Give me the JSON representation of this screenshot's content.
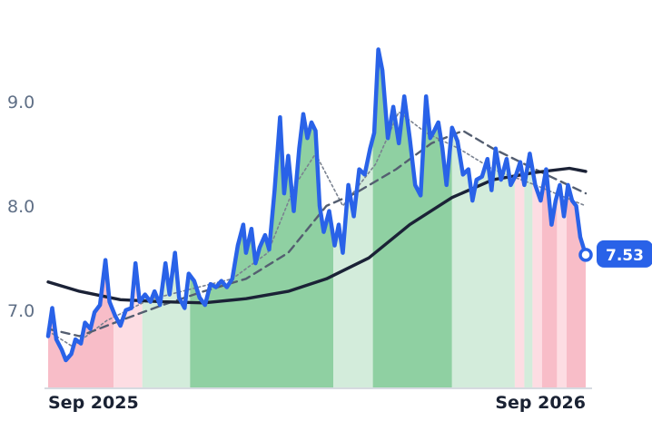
{
  "chart_data": {
    "type": "line",
    "title": "",
    "xlabel": "",
    "ylabel": "",
    "x_range": [
      "2025-08-28",
      "2026-09-26"
    ],
    "ylim": [
      6.25,
      9.8
    ],
    "y_ticks": [
      {
        "value": 7.0,
        "label": "7.0"
      },
      {
        "value": 8.0,
        "label": "8.0"
      },
      {
        "value": 9.0,
        "label": "9.0"
      }
    ],
    "x_ticks": [
      {
        "value": "2025-09-01",
        "label": "Sep 2025"
      },
      {
        "value": "2026-09-01",
        "label": "Sep 2026"
      }
    ],
    "grid": false,
    "legend": "none",
    "last_value_label": "7.53",
    "colors": {
      "price": "#2962e8",
      "long_ma": "#1b2236",
      "mid_ma": "#545e70",
      "short_ma": "#7a8290",
      "up_strong": "#8fd0a2",
      "up_light": "#d3ecdb",
      "down_strong": "#f8bdc8",
      "down_light": "#fddde3",
      "badge": "#2962e8"
    },
    "bands": [
      {
        "from": "2025-08-28",
        "to": "2025-10-15",
        "zone": "down_strong"
      },
      {
        "from": "2025-10-15",
        "to": "2025-11-05",
        "zone": "down_light"
      },
      {
        "from": "2025-11-05",
        "to": "2025-12-10",
        "zone": "up_light"
      },
      {
        "from": "2025-12-10",
        "to": "2026-03-25",
        "zone": "up_strong"
      },
      {
        "from": "2026-03-25",
        "to": "2026-04-23",
        "zone": "up_light"
      },
      {
        "from": "2026-04-23",
        "to": "2026-06-20",
        "zone": "up_strong"
      },
      {
        "from": "2026-06-20",
        "to": "2026-08-05",
        "zone": "up_light"
      },
      {
        "from": "2026-08-05",
        "to": "2026-08-12",
        "zone": "down_light"
      },
      {
        "from": "2026-08-12",
        "to": "2026-08-18",
        "zone": "up_light"
      },
      {
        "from": "2026-08-18",
        "to": "2026-08-25",
        "zone": "down_light"
      },
      {
        "from": "2026-08-25",
        "to": "2026-09-05",
        "zone": "down_strong"
      },
      {
        "from": "2026-09-05",
        "to": "2026-09-12",
        "zone": "down_light"
      },
      {
        "from": "2026-09-12",
        "to": "2026-09-26",
        "zone": "down_strong"
      }
    ],
    "series": [
      {
        "key": "price",
        "points": [
          [
            "2025-08-28",
            6.75
          ],
          [
            "2025-08-31",
            7.02
          ],
          [
            "2025-09-03",
            6.72
          ],
          [
            "2025-09-07",
            6.62
          ],
          [
            "2025-09-10",
            6.52
          ],
          [
            "2025-09-14",
            6.58
          ],
          [
            "2025-09-17",
            6.72
          ],
          [
            "2025-09-21",
            6.68
          ],
          [
            "2025-09-24",
            6.88
          ],
          [
            "2025-09-28",
            6.82
          ],
          [
            "2025-10-01",
            6.98
          ],
          [
            "2025-10-05",
            7.05
          ],
          [
            "2025-10-09",
            7.48
          ],
          [
            "2025-10-12",
            7.08
          ],
          [
            "2025-10-16",
            6.95
          ],
          [
            "2025-10-20",
            6.85
          ],
          [
            "2025-10-24",
            7.0
          ],
          [
            "2025-10-28",
            7.02
          ],
          [
            "2025-10-31",
            7.45
          ],
          [
            "2025-11-03",
            7.08
          ],
          [
            "2025-11-07",
            7.15
          ],
          [
            "2025-11-11",
            7.08
          ],
          [
            "2025-11-14",
            7.18
          ],
          [
            "2025-11-18",
            7.05
          ],
          [
            "2025-11-22",
            7.45
          ],
          [
            "2025-11-25",
            7.15
          ],
          [
            "2025-11-29",
            7.55
          ],
          [
            "2025-12-02",
            7.12
          ],
          [
            "2025-12-06",
            7.02
          ],
          [
            "2025-12-09",
            7.35
          ],
          [
            "2025-12-13",
            7.28
          ],
          [
            "2025-12-17",
            7.12
          ],
          [
            "2025-12-21",
            7.05
          ],
          [
            "2025-12-25",
            7.25
          ],
          [
            "2025-12-29",
            7.22
          ],
          [
            "2026-01-02",
            7.28
          ],
          [
            "2026-01-06",
            7.22
          ],
          [
            "2026-01-10",
            7.3
          ],
          [
            "2026-01-14",
            7.62
          ],
          [
            "2026-01-18",
            7.82
          ],
          [
            "2026-01-20",
            7.55
          ],
          [
            "2026-01-24",
            7.78
          ],
          [
            "2026-01-27",
            7.45
          ],
          [
            "2026-01-30",
            7.6
          ],
          [
            "2026-02-03",
            7.72
          ],
          [
            "2026-02-06",
            7.58
          ],
          [
            "2026-02-10",
            8.15
          ],
          [
            "2026-02-14",
            8.85
          ],
          [
            "2026-02-17",
            8.12
          ],
          [
            "2026-02-20",
            8.48
          ],
          [
            "2026-02-24",
            7.95
          ],
          [
            "2026-02-28",
            8.55
          ],
          [
            "2026-03-03",
            8.88
          ],
          [
            "2026-03-06",
            8.65
          ],
          [
            "2026-03-09",
            8.8
          ],
          [
            "2026-03-12",
            8.72
          ],
          [
            "2026-03-15",
            8.0
          ],
          [
            "2026-03-18",
            7.75
          ],
          [
            "2026-03-22",
            7.95
          ],
          [
            "2026-03-26",
            7.62
          ],
          [
            "2026-03-29",
            7.82
          ],
          [
            "2026-04-01",
            7.55
          ],
          [
            "2026-04-05",
            8.2
          ],
          [
            "2026-04-09",
            7.9
          ],
          [
            "2026-04-13",
            8.35
          ],
          [
            "2026-04-17",
            8.3
          ],
          [
            "2026-04-21",
            8.55
          ],
          [
            "2026-04-24",
            8.7
          ],
          [
            "2026-04-27",
            9.5
          ],
          [
            "2026-04-30",
            9.3
          ],
          [
            "2026-05-04",
            8.65
          ],
          [
            "2026-05-08",
            8.95
          ],
          [
            "2026-05-12",
            8.6
          ],
          [
            "2026-05-16",
            9.05
          ],
          [
            "2026-05-20",
            8.65
          ],
          [
            "2026-05-24",
            8.2
          ],
          [
            "2026-05-28",
            8.1
          ],
          [
            "2026-06-01",
            9.05
          ],
          [
            "2026-06-04",
            8.65
          ],
          [
            "2026-06-07",
            8.72
          ],
          [
            "2026-06-10",
            8.8
          ],
          [
            "2026-06-13",
            8.55
          ],
          [
            "2026-06-16",
            8.2
          ],
          [
            "2026-06-20",
            8.75
          ],
          [
            "2026-06-24",
            8.62
          ],
          [
            "2026-06-28",
            8.3
          ],
          [
            "2026-07-02",
            8.35
          ],
          [
            "2026-07-05",
            8.05
          ],
          [
            "2026-07-08",
            8.25
          ],
          [
            "2026-07-12",
            8.28
          ],
          [
            "2026-07-16",
            8.45
          ],
          [
            "2026-07-19",
            8.15
          ],
          [
            "2026-07-22",
            8.55
          ],
          [
            "2026-07-26",
            8.25
          ],
          [
            "2026-07-30",
            8.45
          ],
          [
            "2026-08-02",
            8.2
          ],
          [
            "2026-08-06",
            8.3
          ],
          [
            "2026-08-09",
            8.42
          ],
          [
            "2026-08-12",
            8.2
          ],
          [
            "2026-08-16",
            8.5
          ],
          [
            "2026-08-20",
            8.2
          ],
          [
            "2026-08-24",
            8.05
          ],
          [
            "2026-08-28",
            8.35
          ],
          [
            "2026-09-01",
            7.82
          ],
          [
            "2026-09-04",
            8.05
          ],
          [
            "2026-09-07",
            8.2
          ],
          [
            "2026-09-10",
            7.9
          ],
          [
            "2026-09-13",
            8.2
          ],
          [
            "2026-09-16",
            8.05
          ],
          [
            "2026-09-19",
            8.0
          ],
          [
            "2026-09-22",
            7.7
          ],
          [
            "2026-09-26",
            7.53
          ]
        ]
      },
      {
        "key": "long_ma",
        "points": [
          [
            "2025-08-28",
            7.27
          ],
          [
            "2025-09-20",
            7.18
          ],
          [
            "2025-10-20",
            7.1
          ],
          [
            "2025-11-20",
            7.08
          ],
          [
            "2025-12-20",
            7.07
          ],
          [
            "2026-01-20",
            7.11
          ],
          [
            "2026-02-20",
            7.18
          ],
          [
            "2026-03-20",
            7.3
          ],
          [
            "2026-04-20",
            7.5
          ],
          [
            "2026-05-20",
            7.82
          ],
          [
            "2026-06-20",
            8.08
          ],
          [
            "2026-07-20",
            8.25
          ],
          [
            "2026-08-20",
            8.32
          ],
          [
            "2026-09-14",
            8.36
          ],
          [
            "2026-09-26",
            8.33
          ]
        ]
      },
      {
        "key": "mid_ma",
        "points": [
          [
            "2025-08-28",
            6.82
          ],
          [
            "2025-09-20",
            6.75
          ],
          [
            "2025-10-20",
            6.9
          ],
          [
            "2025-11-20",
            7.05
          ],
          [
            "2025-12-20",
            7.18
          ],
          [
            "2026-01-20",
            7.3
          ],
          [
            "2026-02-20",
            7.55
          ],
          [
            "2026-03-20",
            8.0
          ],
          [
            "2026-04-10",
            8.12
          ],
          [
            "2026-05-10",
            8.35
          ],
          [
            "2026-06-05",
            8.6
          ],
          [
            "2026-06-28",
            8.72
          ],
          [
            "2026-07-20",
            8.55
          ],
          [
            "2026-08-20",
            8.35
          ],
          [
            "2026-09-26",
            8.12
          ]
        ]
      },
      {
        "key": "short_ma",
        "points": [
          [
            "2025-08-28",
            6.8
          ],
          [
            "2025-09-15",
            6.65
          ],
          [
            "2025-10-10",
            6.9
          ],
          [
            "2025-11-10",
            7.1
          ],
          [
            "2025-12-10",
            7.2
          ],
          [
            "2026-01-10",
            7.3
          ],
          [
            "2026-02-05",
            7.55
          ],
          [
            "2026-02-25",
            8.2
          ],
          [
            "2026-03-12",
            8.5
          ],
          [
            "2026-04-01",
            8.0
          ],
          [
            "2026-04-25",
            8.4
          ],
          [
            "2026-05-12",
            8.9
          ],
          [
            "2026-06-01",
            8.7
          ],
          [
            "2026-06-25",
            8.55
          ],
          [
            "2026-07-20",
            8.35
          ],
          [
            "2026-08-20",
            8.2
          ],
          [
            "2026-09-26",
            8.0
          ]
        ]
      }
    ]
  }
}
